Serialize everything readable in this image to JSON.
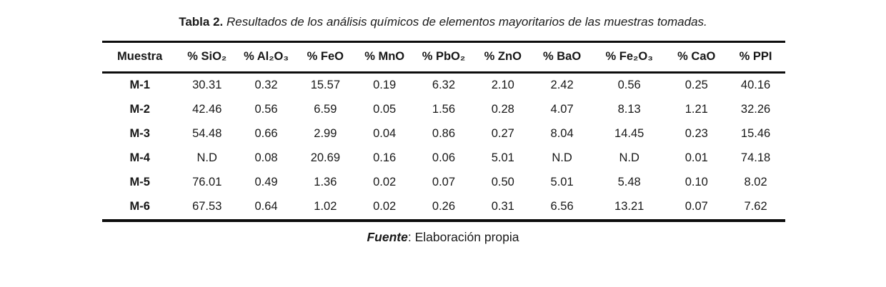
{
  "title": {
    "label": "Tabla 2",
    "separator": ". ",
    "caption": "Resultados de los análisis químicos de elementos mayoritarios de las muestras tomadas."
  },
  "table": {
    "columns": [
      "Muestra",
      "% SiO₂",
      "% Al₂O₃",
      "% FeO",
      "% MnO",
      "% PbO₂",
      "% ZnO",
      "% BaO",
      "% Fe₂O₃",
      "% CaO",
      "% PPI"
    ],
    "rows": [
      {
        "muestra": "M-1",
        "values": [
          "30.31",
          "0.32",
          "15.57",
          "0.19",
          "6.32",
          "2.10",
          "2.42",
          "0.56",
          "0.25",
          "40.16"
        ]
      },
      {
        "muestra": "M-2",
        "values": [
          "42.46",
          "0.56",
          "6.59",
          "0.05",
          "1.56",
          "0.28",
          "4.07",
          "8.13",
          "1.21",
          "32.26"
        ]
      },
      {
        "muestra": "M-3",
        "values": [
          "54.48",
          "0.66",
          "2.99",
          "0.04",
          "0.86",
          "0.27",
          "8.04",
          "14.45",
          "0.23",
          "15.46"
        ]
      },
      {
        "muestra": "M-4",
        "values": [
          "N.D",
          "0.08",
          "20.69",
          "0.16",
          "0.06",
          "5.01",
          "N.D",
          "N.D",
          "0.01",
          "74.18"
        ]
      },
      {
        "muestra": "M-5",
        "values": [
          "76.01",
          "0.49",
          "1.36",
          "0.02",
          "0.07",
          "0.50",
          "5.01",
          "5.48",
          "0.10",
          "8.02"
        ]
      },
      {
        "muestra": "M-6",
        "values": [
          "67.53",
          "0.64",
          "1.02",
          "0.02",
          "0.26",
          "0.31",
          "6.56",
          "13.21",
          "0.07",
          "7.62"
        ]
      }
    ]
  },
  "footer": {
    "source_label": "Fuente",
    "source_text": ": Elaboración propia"
  }
}
